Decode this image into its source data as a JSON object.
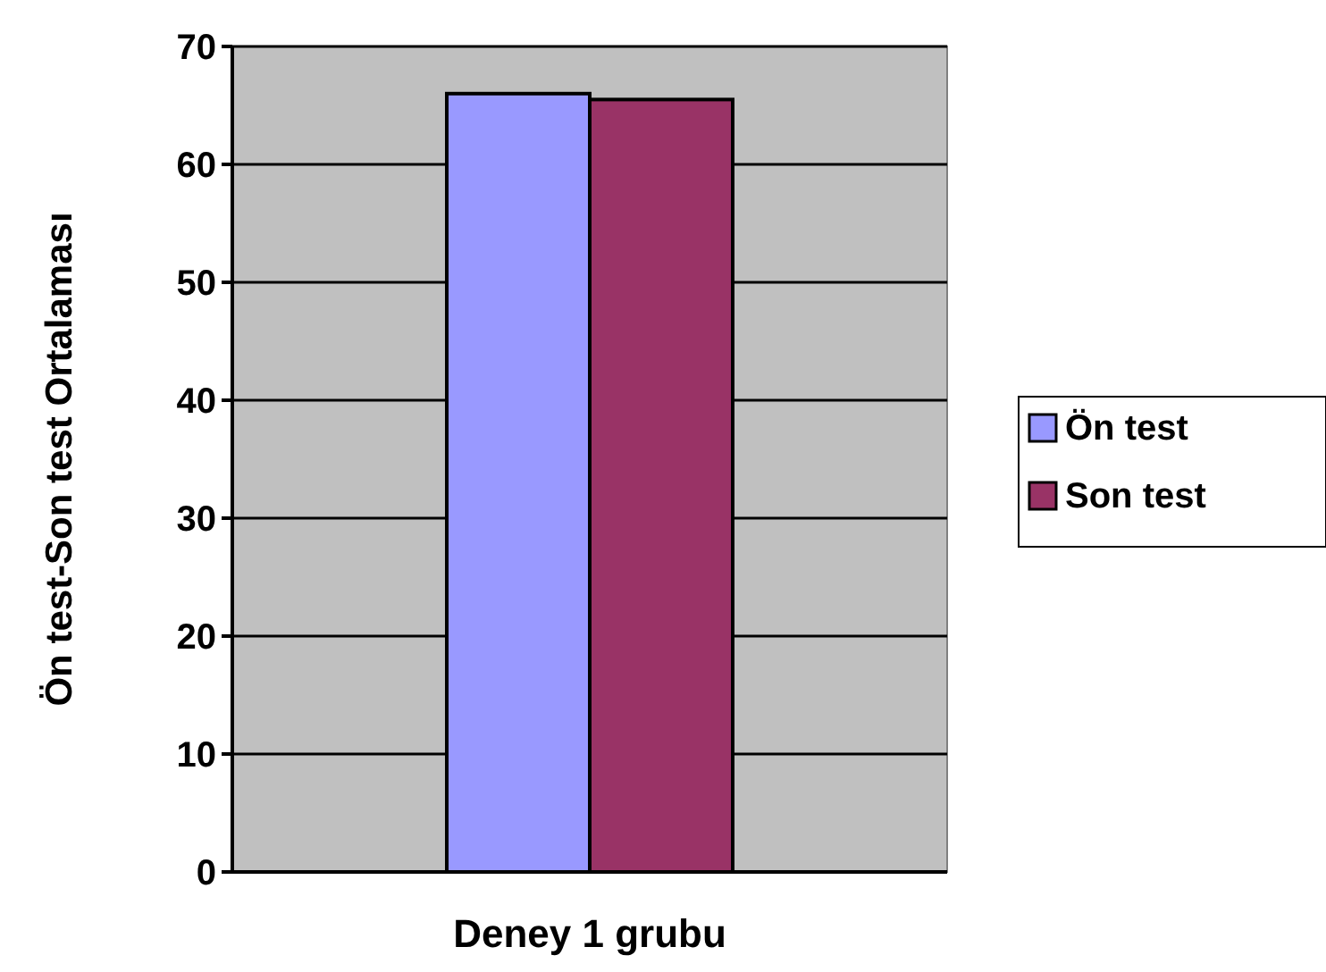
{
  "chart_data": {
    "type": "bar",
    "ylabel": "Ön test-Son test Ortalaması",
    "xlabel": "Deney 1 grubu",
    "categories": [
      null
    ],
    "series": [
      {
        "name": "Ön test",
        "color": "#9999ff",
        "values": [
          66
        ]
      },
      {
        "name": "Son test",
        "color": "#993366",
        "values": [
          65.5
        ]
      }
    ],
    "ylim": [
      0,
      70
    ],
    "yticks": [
      0,
      10,
      20,
      30,
      40,
      50,
      60,
      70
    ],
    "grid": "y",
    "legend": "right"
  }
}
